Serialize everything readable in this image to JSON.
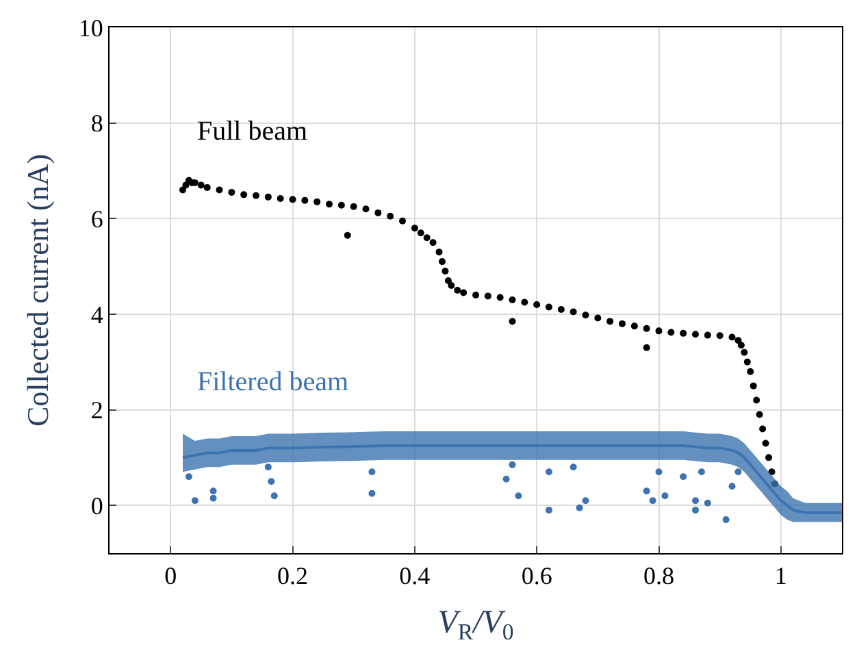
{
  "chart_data": {
    "type": "scatter",
    "xlabel": "V$_{R}$/V$_{0}$",
    "ylabel": "Collected current (nA)",
    "xlim": [
      -0.1,
      1.1
    ],
    "xticks": [
      0,
      0.2,
      0.4,
      0.6,
      0.8,
      1
    ],
    "ylim": [
      -1,
      10
    ],
    "yticks": [
      0,
      2,
      4,
      6,
      8,
      10
    ],
    "grid": true,
    "legend": false,
    "marker": "circle",
    "series": [
      {
        "name": "Full beam",
        "color": "#000000",
        "x": [
          0.02,
          0.025,
          0.03,
          0.035,
          0.04,
          0.05,
          0.06,
          0.08,
          0.1,
          0.12,
          0.14,
          0.16,
          0.18,
          0.2,
          0.22,
          0.24,
          0.26,
          0.28,
          0.3,
          0.32,
          0.34,
          0.36,
          0.38,
          0.4,
          0.41,
          0.42,
          0.43,
          0.44,
          0.445,
          0.45,
          0.455,
          0.46,
          0.47,
          0.48,
          0.5,
          0.52,
          0.54,
          0.56,
          0.58,
          0.6,
          0.62,
          0.64,
          0.66,
          0.68,
          0.7,
          0.72,
          0.74,
          0.76,
          0.78,
          0.8,
          0.82,
          0.84,
          0.86,
          0.88,
          0.9,
          0.92,
          0.93,
          0.935,
          0.94,
          0.945,
          0.95,
          0.955,
          0.96,
          0.965,
          0.97,
          0.975,
          0.98,
          0.985,
          0.99,
          0.29,
          0.56,
          0.78
        ],
        "values": [
          6.6,
          6.7,
          6.8,
          6.75,
          6.75,
          6.7,
          6.65,
          6.6,
          6.55,
          6.5,
          6.48,
          6.45,
          6.42,
          6.4,
          6.38,
          6.35,
          6.3,
          6.28,
          6.25,
          6.2,
          6.12,
          6.05,
          5.95,
          5.8,
          5.7,
          5.6,
          5.5,
          5.3,
          5.1,
          4.9,
          4.7,
          4.6,
          4.5,
          4.45,
          4.4,
          4.38,
          4.35,
          4.3,
          4.25,
          4.2,
          4.15,
          4.1,
          4.05,
          3.98,
          3.92,
          3.85,
          3.8,
          3.75,
          3.7,
          3.65,
          3.62,
          3.6,
          3.58,
          3.56,
          3.55,
          3.52,
          3.45,
          3.35,
          3.2,
          3.0,
          2.8,
          2.5,
          2.2,
          1.9,
          1.6,
          1.3,
          1.0,
          0.7,
          0.45,
          5.65,
          3.85,
          3.3
        ]
      },
      {
        "name": "Filtered beam",
        "type": "line",
        "marker": "none",
        "color": "#3d74b0",
        "x": [
          0.02,
          0.04,
          0.06,
          0.08,
          0.1,
          0.12,
          0.14,
          0.16,
          0.18,
          0.2,
          0.25,
          0.3,
          0.35,
          0.4,
          0.45,
          0.5,
          0.55,
          0.6,
          0.65,
          0.7,
          0.75,
          0.8,
          0.84,
          0.88,
          0.9,
          0.92,
          0.93,
          0.94,
          0.95,
          0.96,
          0.97,
          0.98,
          0.99,
          1.0,
          1.01,
          1.02,
          1.04,
          1.06,
          1.08,
          1.1
        ],
        "values": [
          1.0,
          1.05,
          1.1,
          1.1,
          1.15,
          1.15,
          1.15,
          1.2,
          1.2,
          1.2,
          1.22,
          1.23,
          1.25,
          1.25,
          1.25,
          1.25,
          1.25,
          1.25,
          1.25,
          1.25,
          1.25,
          1.25,
          1.25,
          1.2,
          1.2,
          1.15,
          1.1,
          1.0,
          0.85,
          0.7,
          0.55,
          0.4,
          0.25,
          0.1,
          0.0,
          -0.1,
          -0.15,
          -0.15,
          -0.15,
          -0.15
        ],
        "lower": [
          0.7,
          0.75,
          0.8,
          0.8,
          0.85,
          0.85,
          0.85,
          0.9,
          0.9,
          0.9,
          0.92,
          0.93,
          0.95,
          0.95,
          0.95,
          0.95,
          0.95,
          0.95,
          0.95,
          0.95,
          0.95,
          0.95,
          0.95,
          0.9,
          0.9,
          0.85,
          0.8,
          0.7,
          0.55,
          0.4,
          0.25,
          0.1,
          -0.05,
          -0.2,
          -0.3,
          -0.35,
          -0.35,
          -0.35,
          -0.35,
          -0.35
        ],
        "upper": [
          1.5,
          1.35,
          1.4,
          1.4,
          1.45,
          1.45,
          1.45,
          1.5,
          1.5,
          1.5,
          1.52,
          1.53,
          1.55,
          1.55,
          1.55,
          1.55,
          1.55,
          1.55,
          1.55,
          1.55,
          1.55,
          1.55,
          1.55,
          1.5,
          1.5,
          1.45,
          1.4,
          1.3,
          1.15,
          1.0,
          0.85,
          0.7,
          0.55,
          0.4,
          0.3,
          0.15,
          0.05,
          0.05,
          0.05,
          0.05
        ]
      },
      {
        "color": "#3d74b0",
        "x": [
          0.03,
          0.04,
          0.07,
          0.07,
          0.16,
          0.165,
          0.17,
          0.33,
          0.33,
          0.55,
          0.56,
          0.57,
          0.62,
          0.62,
          0.66,
          0.67,
          0.68,
          0.78,
          0.79,
          0.8,
          0.81,
          0.84,
          0.86,
          0.86,
          0.87,
          0.88,
          0.91,
          0.92,
          0.93
        ],
        "values": [
          0.6,
          0.1,
          0.3,
          0.15,
          0.8,
          0.5,
          0.2,
          0.7,
          0.25,
          0.55,
          0.85,
          0.2,
          0.7,
          -0.1,
          0.8,
          -0.05,
          0.1,
          0.3,
          0.1,
          0.7,
          0.2,
          0.6,
          0.1,
          -0.1,
          0.7,
          0.05,
          -0.3,
          0.4,
          0.7
        ]
      }
    ]
  }
}
